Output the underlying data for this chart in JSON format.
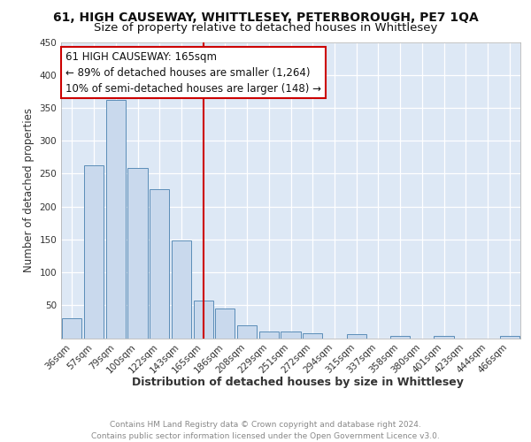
{
  "title1": "61, HIGH CAUSEWAY, WHITTLESEY, PETERBOROUGH, PE7 1QA",
  "title2": "Size of property relative to detached houses in Whittlesey",
  "xlabel": "Distribution of detached houses by size in Whittlesey",
  "ylabel": "Number of detached properties",
  "footer": "Contains HM Land Registry data © Crown copyright and database right 2024.\nContains public sector information licensed under the Open Government Licence v3.0.",
  "annotation_title": "61 HIGH CAUSEWAY: 165sqm",
  "annotation_line1": "← 89% of detached houses are smaller (1,264)",
  "annotation_line2": "10% of semi-detached houses are larger (148) →",
  "bar_labels": [
    "36sqm",
    "57sqm",
    "79sqm",
    "100sqm",
    "122sqm",
    "143sqm",
    "165sqm",
    "186sqm",
    "208sqm",
    "229sqm",
    "251sqm",
    "272sqm",
    "294sqm",
    "315sqm",
    "337sqm",
    "358sqm",
    "380sqm",
    "401sqm",
    "423sqm",
    "444sqm",
    "466sqm"
  ],
  "bar_values": [
    30,
    262,
    362,
    258,
    226,
    148,
    57,
    45,
    20,
    10,
    10,
    7,
    0,
    6,
    0,
    4,
    0,
    4,
    0,
    0,
    4
  ],
  "bar_color": "#c9d9ed",
  "bar_edge_color": "#5b8db8",
  "vline_color": "#cc0000",
  "vline_x_index": 6,
  "annotation_box_color": "#ffffff",
  "annotation_box_edge_color": "#cc0000",
  "plot_bg_color": "#dde8f5",
  "ylim": [
    0,
    450
  ],
  "yticks": [
    0,
    50,
    100,
    150,
    200,
    250,
    300,
    350,
    400,
    450
  ],
  "grid_color": "#ffffff",
  "title1_fontsize": 10,
  "title2_fontsize": 9.5,
  "xlabel_fontsize": 9,
  "ylabel_fontsize": 8.5,
  "tick_fontsize": 7.5,
  "annotation_fontsize": 8.5,
  "footer_fontsize": 6.5
}
